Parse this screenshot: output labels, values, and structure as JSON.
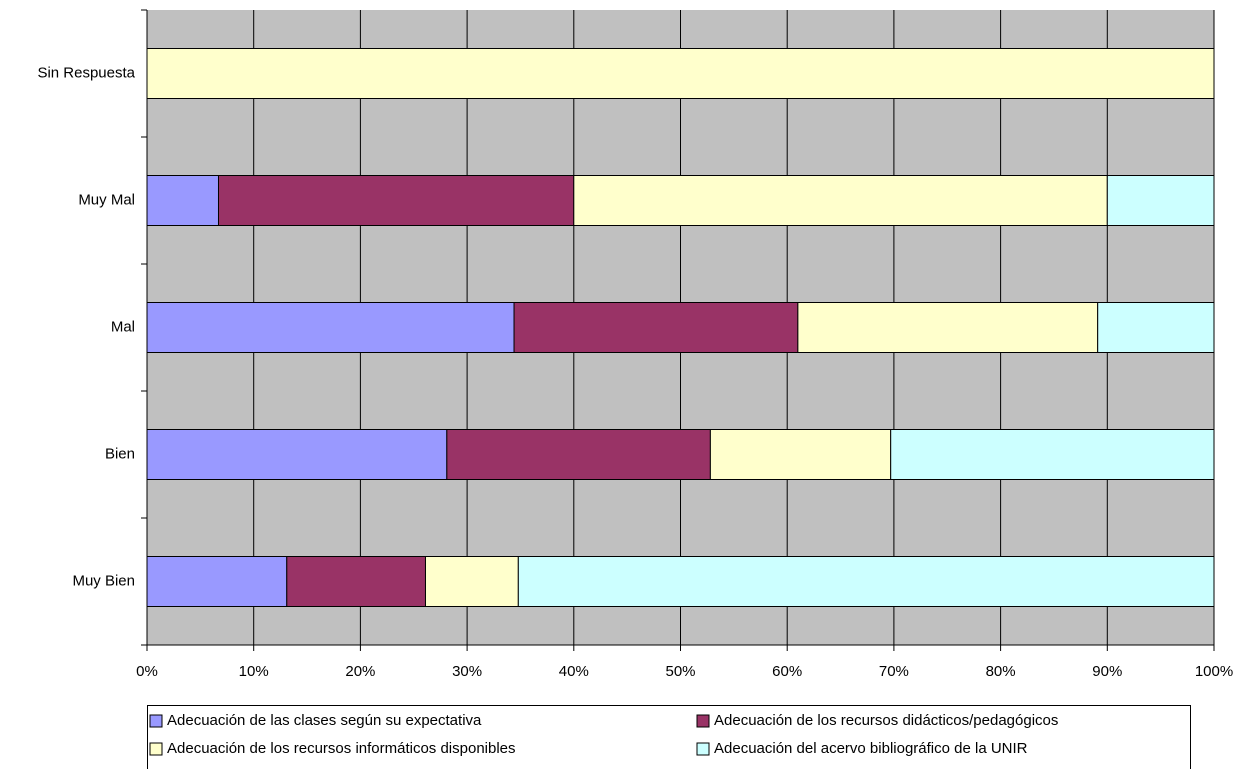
{
  "chart_data": {
    "type": "stacked-bar-horizontal",
    "categories": [
      "Muy Bien",
      "Bien",
      "Mal",
      "Muy Mal",
      "Sin Respuesta"
    ],
    "series": [
      {
        "name": "Adecuación de las clases según su expectativa",
        "color": "#9999ff",
        "values": [
          13.1,
          28.1,
          34.4,
          6.7,
          0
        ]
      },
      {
        "name": "Adecuación de los recursos didácticos/pedagógicos",
        "color": "#993366",
        "values": [
          13.0,
          24.7,
          26.6,
          33.3,
          0
        ]
      },
      {
        "name": "Adecuación de los recursos informáticos disponibles",
        "color": "#ffffcc",
        "values": [
          8.7,
          16.9,
          28.1,
          50.0,
          100
        ]
      },
      {
        "name": "Adecuación del acervo bibliográfico de la UNIR",
        "color": "#ccffff",
        "values": [
          65.2,
          30.3,
          10.9,
          10.0,
          0
        ]
      }
    ],
    "xlim": [
      0,
      100
    ],
    "xticks": [
      {
        "value": 0,
        "label": "0%"
      },
      {
        "value": 10,
        "label": "10%"
      },
      {
        "value": 20,
        "label": "20%"
      },
      {
        "value": 30,
        "label": "30%"
      },
      {
        "value": 40,
        "label": "40%"
      },
      {
        "value": 50,
        "label": "50%"
      },
      {
        "value": 60,
        "label": "60%"
      },
      {
        "value": 70,
        "label": "70%"
      },
      {
        "value": 80,
        "label": "80%"
      },
      {
        "value": 90,
        "label": "90%"
      },
      {
        "value": 100,
        "label": "100%"
      }
    ],
    "grid": true,
    "legend": "bottom",
    "plot_background": "#c0c0c0"
  }
}
